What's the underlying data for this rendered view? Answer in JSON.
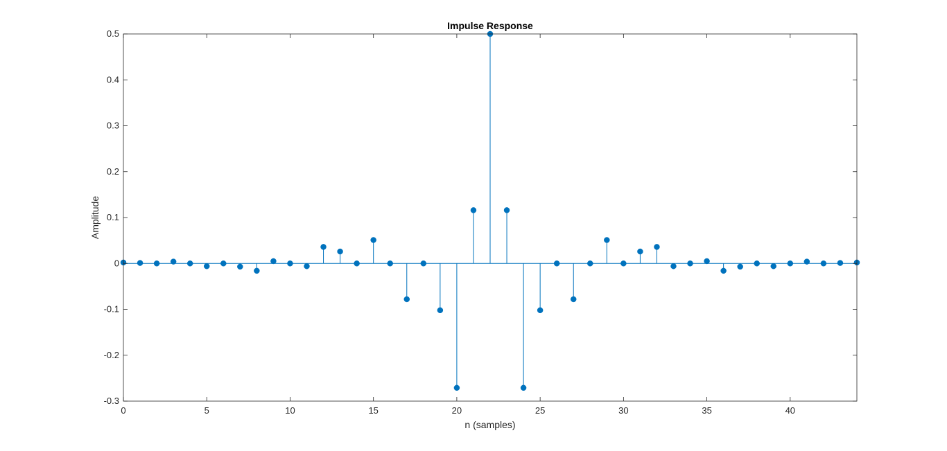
{
  "chart_data": {
    "type": "stem",
    "title": "Impulse Response",
    "xlabel": "n (samples)",
    "ylabel": "Amplitude",
    "xlim": [
      0,
      44
    ],
    "ylim": [
      -0.3,
      0.5
    ],
    "xticks": [
      0,
      5,
      10,
      15,
      20,
      25,
      30,
      35,
      40
    ],
    "yticks": [
      -0.3,
      -0.2,
      -0.1,
      0,
      0.1,
      0.2,
      0.3,
      0.4,
      0.5
    ],
    "ytick_labels": [
      "-0.3",
      "-0.2",
      "-0.1",
      "0",
      "0.1",
      "0.2",
      "0.3",
      "0.4",
      "0.5"
    ],
    "grid": false,
    "box": true,
    "series": [
      {
        "color": "#0072BD",
        "x": [
          0,
          1,
          2,
          3,
          4,
          5,
          6,
          7,
          8,
          9,
          10,
          11,
          12,
          13,
          14,
          15,
          16,
          17,
          18,
          19,
          20,
          21,
          22,
          23,
          24,
          25,
          26,
          27,
          28,
          29,
          30,
          31,
          32,
          33,
          34,
          35,
          36,
          37,
          38,
          39,
          40,
          41,
          42,
          43,
          44
        ],
        "y": [
          0.002,
          0.001,
          0.0,
          0.004,
          0.0,
          -0.006,
          0.0,
          -0.007,
          -0.016,
          0.005,
          0.0,
          -0.006,
          0.036,
          0.026,
          0.0,
          0.051,
          0.0,
          -0.078,
          0.0,
          -0.102,
          -0.271,
          0.116,
          0.5,
          0.116,
          -0.271,
          -0.102,
          0.0,
          -0.078,
          0.0,
          0.051,
          0.0,
          0.026,
          0.036,
          -0.006,
          0.0,
          0.005,
          -0.016,
          -0.007,
          0.0,
          -0.006,
          0.0,
          0.004,
          0.0,
          0.001,
          0.002
        ]
      }
    ]
  }
}
